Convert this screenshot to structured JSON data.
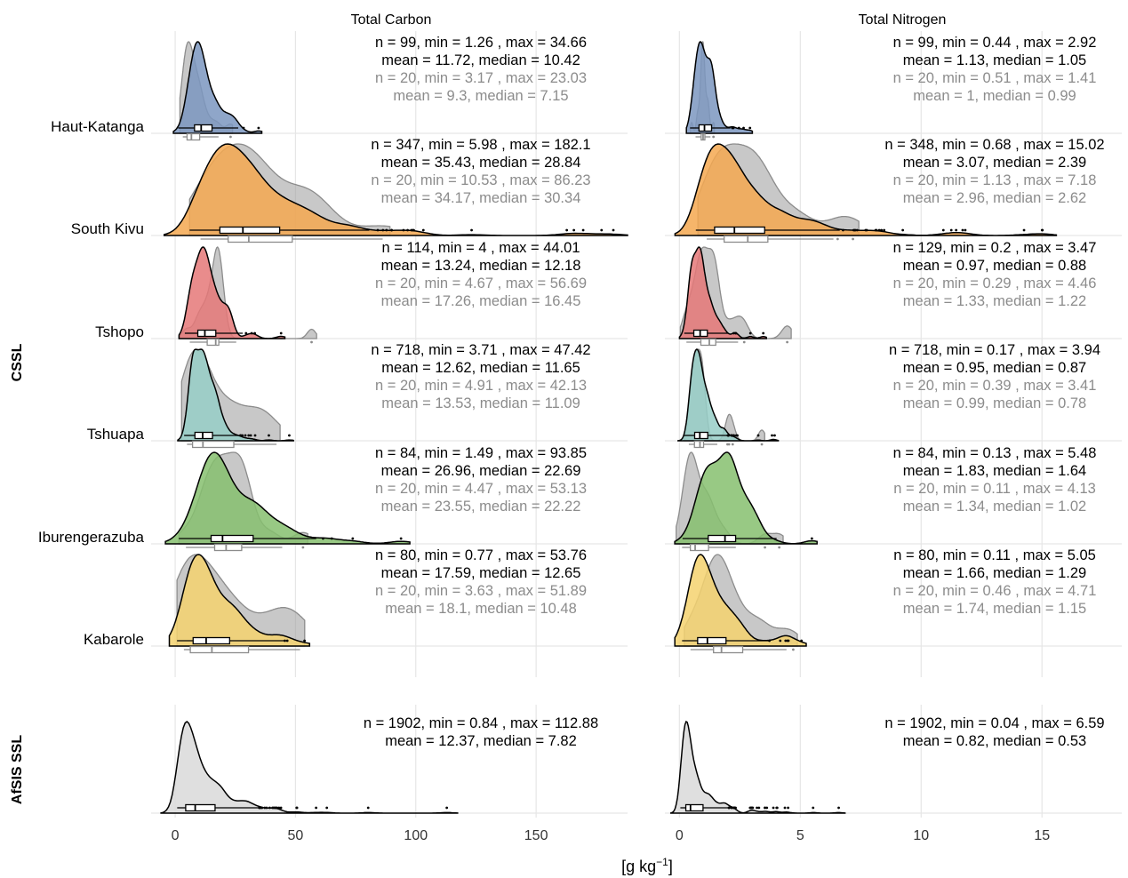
{
  "chart_data": {
    "type": "ridgeline-density-with-boxplots",
    "title": "",
    "xlabel": "[g kg-1]",
    "xlabel_base": "[g kg",
    "xlabel_sup": "−1",
    "xlabel_end": "]",
    "panels": [
      {
        "name": "Total Carbon",
        "xlim": [
          -10,
          188
        ],
        "xticks": [
          0,
          50,
          100,
          150
        ],
        "xtick_labels": [
          "0",
          "50",
          "100",
          "150"
        ]
      },
      {
        "name": "Total Nitrogen",
        "xlim": [
          -0.6,
          18.3
        ],
        "xticks": [
          0,
          5,
          10,
          15
        ],
        "xtick_labels": [
          "0",
          "5",
          "10",
          "15"
        ]
      }
    ],
    "groups": [
      {
        "name": "CSSL",
        "regions": [
          {
            "name": "Haut-Katanga",
            "color": "#7b96bf",
            "carbon": {
              "full": {
                "n": 99,
                "min": 1.26,
                "max": 34.66,
                "mean": 11.72,
                "median": 10.42
              },
              "subset": {
                "n": 20,
                "min": 3.17,
                "max": 23.03,
                "mean": 9.3,
                "median": 7.15
              },
              "full_text": [
                "n = 99, min = 1.26 , max = 34.66",
                "mean = 11.72, median = 10.42"
              ],
              "subset_text": [
                "n = 20, min = 3.17 , max = 23.03",
                "mean = 9.3, median = 7.15"
              ]
            },
            "nitrogen": {
              "full": {
                "n": 99,
                "min": 0.44,
                "max": 2.92,
                "mean": 1.13,
                "median": 1.05
              },
              "subset": {
                "n": 20,
                "min": 0.51,
                "max": 1.41,
                "mean": 1,
                "median": 0.99
              },
              "full_text": [
                "n = 99, min = 0.44 , max = 2.92",
                "mean = 1.13, median = 1.05"
              ],
              "subset_text": [
                "n = 20, min = 0.51 , max = 1.41",
                "mean = 1, median = 0.99"
              ]
            }
          },
          {
            "name": "South Kivu",
            "color": "#f5a850",
            "carbon": {
              "full": {
                "n": 347,
                "min": 5.98,
                "max": 182.1,
                "mean": 35.43,
                "median": 28.84
              },
              "subset": {
                "n": 20,
                "min": 10.53,
                "max": 86.23,
                "mean": 34.17,
                "median": 30.34
              },
              "full_text": [
                "n = 347, min = 5.98 , max = 182.1",
                "mean = 35.43, median = 28.84"
              ],
              "subset_text": [
                "n = 20, min = 10.53 , max = 86.23",
                "mean = 34.17, median = 30.34"
              ]
            },
            "nitrogen": {
              "full": {
                "n": 348,
                "min": 0.68,
                "max": 15.02,
                "mean": 3.07,
                "median": 2.39
              },
              "subset": {
                "n": 20,
                "min": 1.13,
                "max": 7.18,
                "mean": 2.96,
                "median": 2.62
              },
              "full_text": [
                "n = 348, min = 0.68 , max = 15.02",
                "mean = 3.07, median = 2.39"
              ],
              "subset_text": [
                "n = 20, min = 1.13 , max = 7.18",
                "mean = 2.96, median = 2.62"
              ]
            }
          },
          {
            "name": "Tshopo",
            "color": "#e57878",
            "carbon": {
              "full": {
                "n": 114,
                "min": 4,
                "max": 44.01,
                "mean": 13.24,
                "median": 12.18
              },
              "subset": {
                "n": 20,
                "min": 4.67,
                "max": 56.69,
                "mean": 17.26,
                "median": 16.45
              },
              "full_text": [
                "n = 114, min = 4 , max = 44.01",
                "mean = 13.24, median = 12.18"
              ],
              "subset_text": [
                "n = 20, min = 4.67 , max = 56.69",
                "mean = 17.26, median = 16.45"
              ]
            },
            "nitrogen": {
              "full": {
                "n": 129,
                "min": 0.2,
                "max": 3.47,
                "mean": 0.97,
                "median": 0.88
              },
              "subset": {
                "n": 20,
                "min": 0.29,
                "max": 4.46,
                "mean": 1.33,
                "median": 1.22
              },
              "full_text": [
                "n = 129, min = 0.2 , max = 3.47",
                "mean = 0.97, median = 0.88"
              ],
              "subset_text": [
                "n = 20, min = 0.29 , max = 4.46",
                "mean = 1.33, median = 1.22"
              ]
            }
          },
          {
            "name": "Tshuapa",
            "color": "#96cec7",
            "carbon": {
              "full": {
                "n": 718,
                "min": 3.71,
                "max": 47.42,
                "mean": 12.62,
                "median": 11.65
              },
              "subset": {
                "n": 20,
                "min": 4.91,
                "max": 42.13,
                "mean": 13.53,
                "median": 11.09
              },
              "full_text": [
                "n = 718, min = 3.71 , max = 47.42",
                "mean = 12.62, median = 11.65"
              ],
              "subset_text": [
                "n = 20, min = 4.91 , max = 42.13",
                "mean = 13.53, median = 11.09"
              ]
            },
            "nitrogen": {
              "full": {
                "n": 718,
                "min": 0.17,
                "max": 3.94,
                "mean": 0.95,
                "median": 0.87
              },
              "subset": {
                "n": 20,
                "min": 0.39,
                "max": 3.41,
                "mean": 0.99,
                "median": 0.78
              },
              "full_text": [
                "n = 718, min = 0.17 , max = 3.94",
                "mean = 0.95, median = 0.87"
              ],
              "subset_text": [
                "n = 20, min = 0.39 , max = 3.41",
                "mean = 0.99, median = 0.78"
              ]
            }
          },
          {
            "name": "Iburengerazuba",
            "color": "#86bf6f",
            "carbon": {
              "full": {
                "n": 84,
                "min": 1.49,
                "max": 93.85,
                "mean": 26.96,
                "median": 22.69
              },
              "subset": {
                "n": 20,
                "min": 4.47,
                "max": 53.13,
                "mean": 23.55,
                "median": 22.22
              },
              "full_text": [
                "n = 84, min = 1.49 , max = 93.85",
                "mean = 26.96, median = 22.69"
              ],
              "subset_text": [
                "n = 20, min = 4.47 , max = 53.13",
                "mean = 23.55, median = 22.22"
              ]
            },
            "nitrogen": {
              "full": {
                "n": 84,
                "min": 0.13,
                "max": 5.48,
                "mean": 1.83,
                "median": 1.64
              },
              "subset": {
                "n": 20,
                "min": 0.11,
                "max": 4.13,
                "mean": 1.34,
                "median": 1.02
              },
              "full_text": [
                "n = 84, min = 0.13 , max = 5.48",
                "mean = 1.83, median = 1.64"
              ],
              "subset_text": [
                "n = 20, min = 0.11 , max = 4.13",
                "mean = 1.34, median = 1.02"
              ]
            }
          },
          {
            "name": "Kabarole",
            "color": "#f4d26e",
            "carbon": {
              "full": {
                "n": 80,
                "min": 0.77,
                "max": 53.76,
                "mean": 17.59,
                "median": 12.65
              },
              "subset": {
                "n": 20,
                "min": 3.63,
                "max": 51.89,
                "mean": 18.1,
                "median": 10.48
              },
              "full_text": [
                "n = 80, min = 0.77 , max = 53.76",
                "mean = 17.59, median = 12.65"
              ],
              "subset_text": [
                "n = 20, min = 3.63 , max = 51.89",
                "mean = 18.1, median = 10.48"
              ]
            },
            "nitrogen": {
              "full": {
                "n": 80,
                "min": 0.11,
                "max": 5.05,
                "mean": 1.66,
                "median": 1.29
              },
              "subset": {
                "n": 20,
                "min": 0.46,
                "max": 4.71,
                "mean": 1.74,
                "median": 1.15
              },
              "full_text": [
                "n = 80, min = 0.11 , max = 5.05",
                "mean = 1.66, median = 1.29"
              ],
              "subset_text": [
                "n = 20, min = 0.46 , max = 4.71",
                "mean = 1.74, median = 1.15"
              ]
            }
          }
        ]
      },
      {
        "name": "AfSIS SSL",
        "regions": [
          {
            "name": "",
            "color": "#d9d9d9",
            "carbon": {
              "full": {
                "n": 1902,
                "min": 0.84,
                "max": 112.88,
                "mean": 12.37,
                "median": 7.82
              },
              "full_text": [
                "n = 1902, min = 0.84 , max = 112.88",
                "mean = 12.37, median = 7.82"
              ]
            },
            "nitrogen": {
              "full": {
                "n": 1902,
                "min": 0.04,
                "max": 6.59,
                "mean": 0.82,
                "median": 0.53
              },
              "full_text": [
                "n = 1902, min = 0.04 , max = 6.59",
                "mean = 0.82, median = 0.53"
              ]
            }
          }
        ]
      }
    ],
    "grid": true,
    "legend": "none"
  }
}
